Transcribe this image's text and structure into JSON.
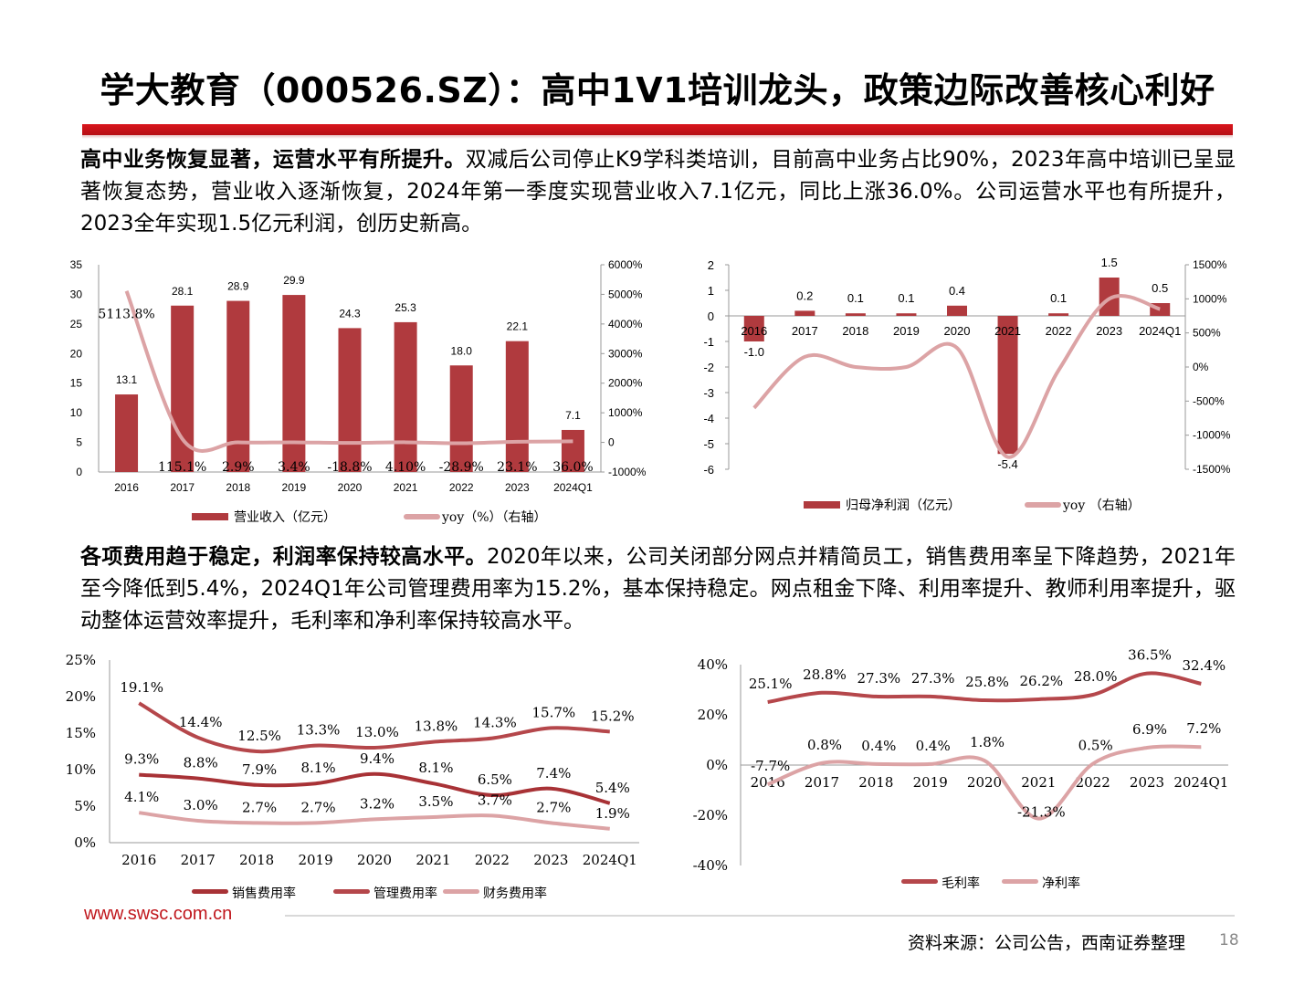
{
  "page": {
    "title": "学大教育（000526.SZ）：高中1V1培训龙头，政策边际改善核心利好",
    "url": "www.swsc.com.cn",
    "source": "资料来源：公司公告，西南证券整理",
    "page_number": "18"
  },
  "section1": {
    "bold": "高中业务恢复显著，运营水平有所提升。",
    "text": "双减后公司停止K9学科类培训，目前高中业务占比90%，2023年高中培训已呈显著恢复态势，营业收入逐渐恢复，2024年第一季度实现营业收入7.1亿元，同比上涨36.0%。公司运营水平也有所提升，2023全年实现1.5亿元利润，创历史新高。"
  },
  "section2": {
    "bold": "各项费用趋于稳定，利润率保持较高水平。",
    "text": "2020年以来，公司关闭部分网点并精简员工，销售费用率呈下降趋势，2021年至今降低到5.4%，2024Q1年公司管理费用率为15.2%，基本保持稳定。网点租金下降、利用率提升、教师利用率提升，驱动整体运营效率提升，毛利率和净利率保持较高水平。"
  },
  "colors": {
    "title_bar": "#c8161d",
    "bar": "#b03a3e",
    "line_dark": "#a83236",
    "line_mid": "#b5474b",
    "line_light": "#dca3a5",
    "url": "#c0161c"
  },
  "chart_data": [
    {
      "type": "bar",
      "categories": [
        "2016",
        "2017",
        "2018",
        "2019",
        "2020",
        "2021",
        "2022",
        "2023",
        "2024Q1"
      ],
      "series": [
        {
          "name": "营业收入（亿元）",
          "values": [
            13.1,
            28.1,
            28.9,
            29.9,
            24.3,
            25.3,
            18.0,
            22.1,
            7.1
          ],
          "labels": [
            "13.1",
            "28.1",
            "28.9",
            "29.9",
            "24.3",
            "25.3",
            "18.0",
            "22.1",
            "7.1"
          ]
        },
        {
          "name": "yoy（%）（右轴）",
          "values": [
            5113.8,
            115.1,
            2.9,
            3.4,
            -18.8,
            4.1,
            -28.9,
            23.1,
            36.0
          ],
          "labels": [
            "5113.8%",
            "115.1%",
            "2.9%",
            "3.4%",
            "-18.8%",
            "4.10%",
            "-28.9%",
            "23.1%",
            "36.0%"
          ]
        }
      ],
      "ylim": [
        0,
        35
      ],
      "y_ticks": [
        "35",
        "30",
        "25",
        "20",
        "15",
        "10",
        "5",
        "0"
      ],
      "y2lim": [
        -1000,
        6000
      ],
      "y2_ticks": [
        "6000%",
        "5000%",
        "4000%",
        "3000%",
        "2000%",
        "1000%",
        "0",
        "-1000%"
      ],
      "legend": [
        "营业收入（亿元）",
        "yoy（%）（右轴）"
      ]
    },
    {
      "type": "bar",
      "categories": [
        "2016",
        "2017",
        "2018",
        "2019",
        "2020",
        "2021",
        "2022",
        "2023",
        "2024Q1"
      ],
      "series": [
        {
          "name": "归母净利润（亿元）",
          "values": [
            -1.0,
            0.2,
            0.1,
            0.1,
            0.4,
            -5.4,
            0.1,
            1.5,
            0.5
          ],
          "labels": [
            "-1.0",
            "0.2",
            "0.1",
            "0.1",
            "0.4",
            "-5.4",
            "0.1",
            "1.5",
            "0.5"
          ]
        },
        {
          "name": "yoy （右轴）",
          "values": [
            -600,
            150,
            0,
            0,
            280,
            -1320,
            -50,
            1000,
            850
          ]
        }
      ],
      "ylim": [
        -6,
        2
      ],
      "y_ticks": [
        "2",
        "1",
        "0",
        "-1",
        "-2",
        "-3",
        "-4",
        "-5",
        "-6"
      ],
      "y2lim": [
        -1500,
        1500
      ],
      "y2_ticks": [
        "1500%",
        "1000%",
        "500%",
        "0%",
        "-500%",
        "-1000%",
        "-1500%"
      ],
      "legend": [
        "归母净利润（亿元）",
        "yoy （右轴）"
      ]
    },
    {
      "type": "line",
      "categories": [
        "2016",
        "2017",
        "2018",
        "2019",
        "2020",
        "2021",
        "2022",
        "2023",
        "2024Q1"
      ],
      "series": [
        {
          "name": "销售费用率",
          "values": [
            9.3,
            8.8,
            7.9,
            8.1,
            9.4,
            8.1,
            6.5,
            7.4,
            5.4
          ],
          "labels": [
            "9.3%",
            "8.8%",
            "7.9%",
            "8.1%",
            "9.4%",
            "8.1%",
            "6.5%",
            "7.4%",
            "5.4%"
          ]
        },
        {
          "name": "管理费用率",
          "values": [
            19.1,
            14.4,
            12.5,
            13.3,
            13.0,
            13.8,
            14.3,
            15.7,
            15.2
          ],
          "labels": [
            "19.1%",
            "14.4%",
            "12.5%",
            "13.3%",
            "13.0%",
            "13.8%",
            "14.3%",
            "15.7%",
            "15.2%"
          ]
        },
        {
          "name": "财务费用率",
          "values": [
            4.1,
            3.0,
            2.7,
            2.7,
            3.2,
            3.5,
            3.7,
            2.7,
            1.9
          ],
          "labels": [
            "4.1%",
            "3.0%",
            "2.7%",
            "2.7%",
            "3.2%",
            "3.5%",
            "3.7%",
            "2.7%",
            "1.9%"
          ]
        }
      ],
      "ylim": [
        0,
        25
      ],
      "y_ticks": [
        "25%",
        "20%",
        "15%",
        "10%",
        "5%",
        "0%"
      ],
      "legend": [
        "销售费用率",
        "管理费用率",
        "财务费用率"
      ]
    },
    {
      "type": "line",
      "categories": [
        "2016",
        "2017",
        "2018",
        "2019",
        "2020",
        "2021",
        "2022",
        "2023",
        "2024Q1"
      ],
      "series": [
        {
          "name": "毛利率",
          "values": [
            25.1,
            28.8,
            27.3,
            27.3,
            25.8,
            26.2,
            28.0,
            36.5,
            32.4
          ],
          "labels": [
            "25.1%",
            "28.8%",
            "27.3%",
            "27.3%",
            "25.8%",
            "26.2%",
            "28.0%",
            "36.5%",
            "32.4%"
          ]
        },
        {
          "name": "净利率",
          "values": [
            -7.7,
            0.8,
            0.4,
            0.4,
            1.8,
            -21.3,
            0.5,
            6.9,
            7.2
          ],
          "labels": [
            "-7.7%",
            "0.8%",
            "0.4%",
            "0.4%",
            "1.8%",
            "-21.3%",
            "0.5%",
            "6.9%",
            "7.2%"
          ]
        }
      ],
      "ylim": [
        -40,
        40
      ],
      "y_ticks": [
        "40%",
        "20%",
        "0%",
        "-20%",
        "-40%"
      ],
      "legend": [
        "毛利率",
        "净利率"
      ]
    }
  ]
}
